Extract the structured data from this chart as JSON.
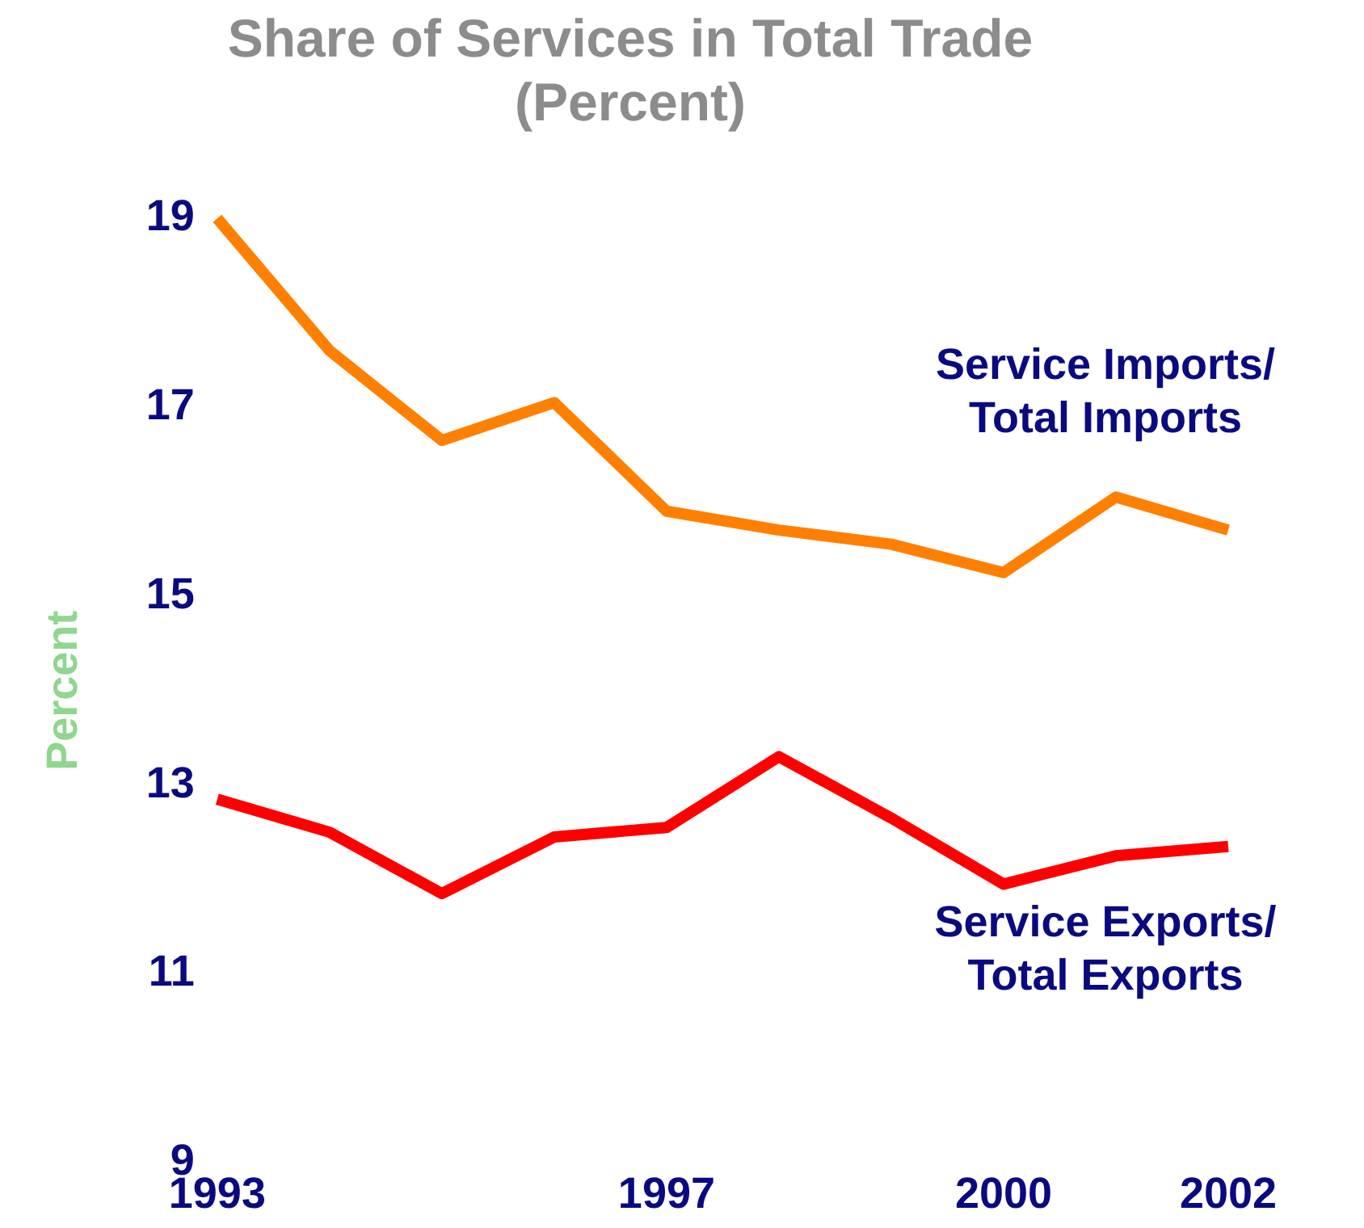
{
  "chart_data": {
    "type": "line",
    "title": "Share of Services in Total Trade",
    "subtitle": "(Percent)",
    "ylabel": "Percent",
    "categories": [
      "1993",
      null,
      null,
      null,
      "1997",
      null,
      null,
      "2000",
      null,
      "2002"
    ],
    "series": [
      {
        "name": "Service Imports/\nTotal Imports",
        "color": "#ff8000",
        "values": [
          19.0,
          17.6,
          16.65,
          17.05,
          15.9,
          15.7,
          15.55,
          15.25,
          16.05,
          15.7
        ]
      },
      {
        "name": "Service Exports/\nTotal Exports",
        "color": "#ff0000",
        "values": [
          12.85,
          12.5,
          11.85,
          12.45,
          12.55,
          13.3,
          12.65,
          11.95,
          12.25,
          12.35
        ]
      }
    ],
    "ylim": [
      9,
      19
    ],
    "yticks": [
      9,
      11,
      13,
      15,
      17,
      19
    ],
    "grid": false,
    "legend": false,
    "marker": "none",
    "line_style": "solid"
  }
}
